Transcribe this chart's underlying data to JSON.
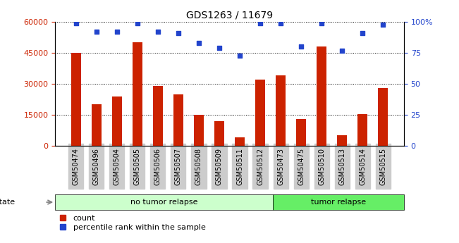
{
  "title": "GDS1263 / 11679",
  "categories": [
    "GSM50474",
    "GSM50496",
    "GSM50504",
    "GSM50505",
    "GSM50506",
    "GSM50507",
    "GSM50508",
    "GSM50509",
    "GSM50511",
    "GSM50512",
    "GSM50473",
    "GSM50475",
    "GSM50510",
    "GSM50513",
    "GSM50514",
    "GSM50515"
  ],
  "counts": [
    45000,
    20000,
    24000,
    50000,
    29000,
    25000,
    15000,
    12000,
    4000,
    32000,
    34000,
    13000,
    48000,
    5000,
    15500,
    28000
  ],
  "percentiles": [
    99,
    92,
    92,
    99,
    92,
    91,
    83,
    79,
    73,
    99,
    99,
    80,
    99,
    77,
    91,
    98
  ],
  "bar_color": "#cc2200",
  "dot_color": "#2244cc",
  "no_tumor_count": 10,
  "group_labels": [
    "no tumor relapse",
    "tumor relapse"
  ],
  "group_colors": [
    "#ccffcc",
    "#66ee66"
  ],
  "ylim_left": [
    0,
    60000
  ],
  "ylim_right": [
    0,
    100
  ],
  "yticks_left": [
    0,
    15000,
    30000,
    45000,
    60000
  ],
  "ytick_labels_left": [
    "0",
    "15000",
    "30000",
    "45000",
    "60000"
  ],
  "yticks_right": [
    0,
    25,
    50,
    75,
    100
  ],
  "ytick_labels_right": [
    "0",
    "25",
    "50",
    "75",
    "100%"
  ],
  "bg_color": "#ffffff",
  "legend_count_label": "count",
  "legend_pct_label": "percentile rank within the sample",
  "tick_bg": "#cccccc"
}
